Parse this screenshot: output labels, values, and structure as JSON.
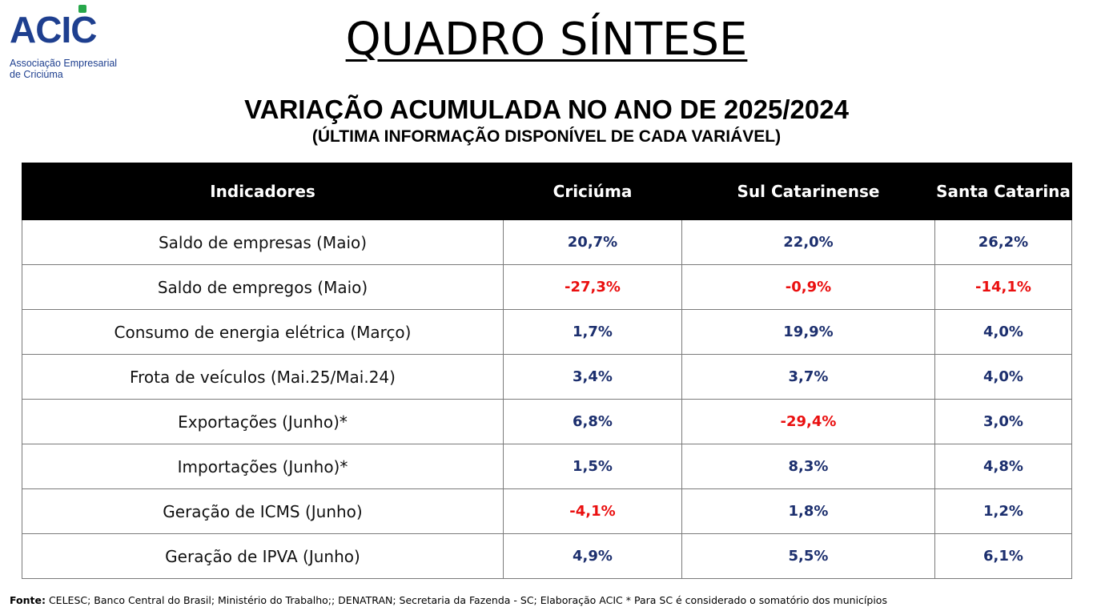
{
  "logo": {
    "name": "ACIC",
    "subtitle_line1": "Associação Empresarial",
    "subtitle_line2": "de Criciúma",
    "colors": {
      "blue": "#1e3f8f",
      "green": "#27a74a"
    }
  },
  "title": "QUADRO SÍNTESE",
  "subtitle": "VARIAÇÃO ACUMULADA NO ANO DE 2025/2024",
  "subtitle2": "(ÚLTIMA INFORMAÇÃO DISPONÍVEL DE CADA VARIÁVEL)",
  "colors": {
    "positive": "#1c2f6e",
    "negative": "#ea0f0f",
    "header_bg": "#000000"
  },
  "table": {
    "headers": [
      "Indicadores",
      "Criciúma",
      "Sul Catarinense",
      "Santa Catarina"
    ],
    "rows": [
      {
        "indicator": "Saldo de empresas (Maio)",
        "values": [
          "20,7%",
          "22,0%",
          "26,2%"
        ]
      },
      {
        "indicator": "Saldo de empregos (Maio)",
        "values": [
          "-27,3%",
          "-0,9%",
          "-14,1%"
        ]
      },
      {
        "indicator": "Consumo de energia elétrica (Março)",
        "values": [
          "1,7%",
          "19,9%",
          "4,0%"
        ]
      },
      {
        "indicator": "Frota de veículos (Mai.25/Mai.24)",
        "values": [
          "3,4%",
          "3,7%",
          "4,0%"
        ]
      },
      {
        "indicator": "Exportações (Junho)*",
        "values": [
          "6,8%",
          "-29,4%",
          "3,0%"
        ]
      },
      {
        "indicator": "Importações (Junho)*",
        "values": [
          "1,5%",
          "8,3%",
          "4,8%"
        ]
      },
      {
        "indicator": "Geração de ICMS (Junho)",
        "values": [
          "-4,1%",
          "1,8%",
          "1,2%"
        ]
      },
      {
        "indicator": "Geração de IPVA (Junho)",
        "values": [
          "4,9%",
          "5,5%",
          "6,1%"
        ]
      }
    ]
  },
  "footer": {
    "label": "Fonte:",
    "text": " CELESC; Banco Central do Brasil; Ministério do Trabalho;; DENATRAN; Secretaria da Fazenda - SC; Elaboração ACIC * Para SC é considerado o somatório dos municípios"
  }
}
